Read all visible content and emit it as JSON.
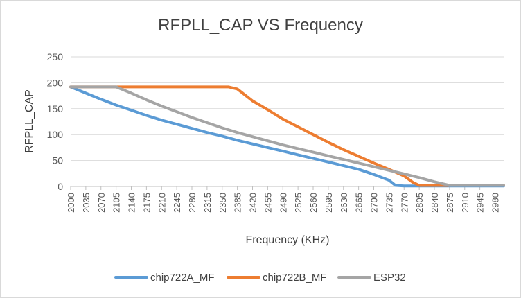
{
  "chart_data": {
    "type": "line",
    "title": "RFPLL_CAP VS  Frequency",
    "xlabel": "Frequency (KHz)",
    "ylabel": "RFPLL_CAP",
    "ylim": [
      0,
      250
    ],
    "yticks": [
      0,
      50,
      100,
      150,
      200,
      250
    ],
    "xlim": [
      2000,
      3000
    ],
    "xticks": [
      "2000",
      "2035",
      "2070",
      "2105",
      "2140",
      "2175",
      "2210",
      "2245",
      "2280",
      "2315",
      "2350",
      "2385",
      "2420",
      "2455",
      "2490",
      "2525",
      "2560",
      "2595",
      "2630",
      "2665",
      "2700",
      "2735",
      "2770",
      "2805",
      "2840",
      "2875",
      "2910",
      "2945",
      "2980"
    ],
    "grid": "horizontal",
    "legend": "bottom",
    "series": [
      {
        "name": "chip722A_MF",
        "color": "#5b9bd5",
        "x": [
          2000,
          2035,
          2070,
          2105,
          2140,
          2175,
          2210,
          2245,
          2280,
          2315,
          2350,
          2385,
          2420,
          2455,
          2490,
          2525,
          2560,
          2595,
          2630,
          2665,
          2700,
          2735,
          2750,
          2770,
          2805,
          2840,
          2875,
          2910,
          2945,
          2980,
          3000
        ],
        "y": [
          192,
          180,
          168,
          157,
          147,
          137,
          128,
          120,
          112,
          104,
          97,
          89,
          82,
          75,
          68,
          61,
          54,
          47,
          40,
          33,
          23,
          12,
          2,
          1,
          1,
          1,
          1,
          1,
          1,
          1,
          1
        ]
      },
      {
        "name": "chip722B_MF",
        "color": "#ed7d31",
        "x": [
          2000,
          2035,
          2070,
          2105,
          2140,
          2175,
          2210,
          2245,
          2280,
          2315,
          2350,
          2365,
          2385,
          2420,
          2455,
          2490,
          2525,
          2560,
          2595,
          2630,
          2665,
          2700,
          2735,
          2770,
          2790,
          2805,
          2840,
          2875,
          2910,
          2945,
          2980,
          3000
        ],
        "y": [
          192,
          192,
          192,
          192,
          192,
          192,
          192,
          192,
          192,
          192,
          192,
          192,
          188,
          165,
          148,
          130,
          115,
          100,
          85,
          71,
          58,
          45,
          33,
          20,
          8,
          2,
          2,
          2,
          2,
          2,
          2,
          2
        ]
      },
      {
        "name": "ESP32",
        "color": "#a5a5a5",
        "x": [
          2000,
          2035,
          2070,
          2105,
          2140,
          2175,
          2210,
          2245,
          2280,
          2315,
          2350,
          2385,
          2420,
          2455,
          2490,
          2525,
          2560,
          2595,
          2630,
          2665,
          2700,
          2735,
          2770,
          2805,
          2840,
          2875,
          2910,
          2945,
          2980,
          3000
        ],
        "y": [
          192,
          192,
          192,
          192,
          180,
          167,
          155,
          144,
          133,
          123,
          113,
          104,
          96,
          88,
          80,
          73,
          66,
          59,
          52,
          45,
          38,
          31,
          24,
          17,
          9,
          2,
          2,
          2,
          2,
          2
        ]
      }
    ]
  }
}
